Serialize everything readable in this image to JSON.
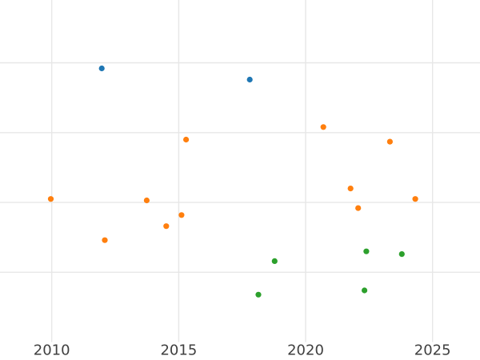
{
  "chart_data": {
    "type": "scatter",
    "title": "",
    "xlabel": "",
    "ylabel": "",
    "legend": "none",
    "grid": true,
    "marker": {
      "shape": "circle",
      "radius_px": 3.6
    },
    "colors": {
      "background": "#ffffff",
      "grid": "#e7e7e7",
      "tick_label": "#3f3f3f",
      "series_blue": "#1f77b4",
      "series_orange": "#ff7f0e",
      "series_green": "#2ca02c"
    },
    "x_axis": {
      "min": 2007.96,
      "max": 2026.87,
      "ticks": [
        {
          "value": 2010,
          "label": "2010"
        },
        {
          "value": 2015,
          "label": "2015"
        },
        {
          "value": 2020,
          "label": "2020"
        },
        {
          "value": 2025,
          "label": "2025"
        }
      ]
    },
    "y_axis": {
      "min": 0,
      "max": 4.9,
      "tick_values": [
        1,
        2,
        3,
        4
      ],
      "tick_labels": []
    },
    "series": [
      {
        "name": "blue",
        "color": "#1f77b4",
        "points": [
          {
            "x": 2011.97,
            "y": 3.92
          },
          {
            "x": 2017.8,
            "y": 3.76
          }
        ]
      },
      {
        "name": "orange",
        "color": "#ff7f0e",
        "points": [
          {
            "x": 2009.96,
            "y": 2.05
          },
          {
            "x": 2012.09,
            "y": 1.46
          },
          {
            "x": 2013.74,
            "y": 2.03
          },
          {
            "x": 2014.51,
            "y": 1.66
          },
          {
            "x": 2015.11,
            "y": 1.82
          },
          {
            "x": 2015.29,
            "y": 2.9
          },
          {
            "x": 2020.7,
            "y": 3.08
          },
          {
            "x": 2021.77,
            "y": 2.2
          },
          {
            "x": 2022.07,
            "y": 1.92
          },
          {
            "x": 2023.32,
            "y": 2.87
          },
          {
            "x": 2024.32,
            "y": 2.05
          }
        ]
      },
      {
        "name": "green",
        "color": "#2ca02c",
        "points": [
          {
            "x": 2018.14,
            "y": 0.68
          },
          {
            "x": 2018.78,
            "y": 1.16
          },
          {
            "x": 2022.32,
            "y": 0.74
          },
          {
            "x": 2022.39,
            "y": 1.3
          },
          {
            "x": 2023.79,
            "y": 1.26
          }
        ]
      }
    ]
  }
}
